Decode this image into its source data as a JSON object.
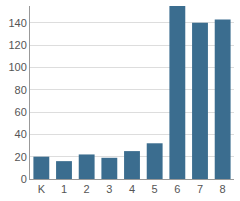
{
  "chart_data": {
    "type": "bar",
    "categories": [
      "K",
      "1",
      "2",
      "3",
      "4",
      "5",
      "6",
      "7",
      "8"
    ],
    "values": [
      20,
      16,
      22,
      19,
      25,
      32,
      155,
      140,
      143
    ],
    "color": "#3b6d8f",
    "ylim": [
      0,
      155
    ],
    "yticks": [
      0,
      20,
      40,
      60,
      80,
      100,
      120,
      140
    ],
    "grid": true
  }
}
